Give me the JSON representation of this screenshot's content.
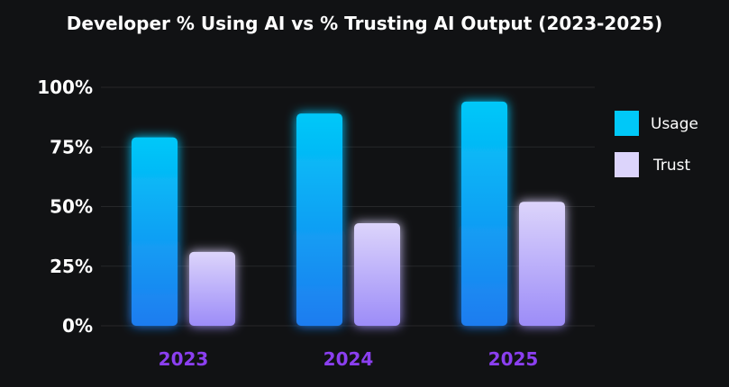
{
  "chart_data": {
    "type": "bar",
    "title": "Developer % Using AI vs % Trusting AI Output (2023-2025)",
    "categories": [
      "2023",
      "2024",
      "2025"
    ],
    "series": [
      {
        "name": "Usage",
        "values": [
          79,
          89,
          94
        ],
        "color": "#00c8f8",
        "color_bottom": "#1f7cf0"
      },
      {
        "name": "Trust",
        "values": [
          31,
          43,
          52
        ],
        "color": "#dcd4fb",
        "color_bottom": "#9c8cf8"
      }
    ],
    "ylim": [
      0,
      100
    ],
    "yticks": [
      "0%",
      "25%",
      "50%",
      "75%",
      "100%"
    ],
    "xlabel": "",
    "ylabel": "",
    "grid": true,
    "legend": "right",
    "category_label_color": "#8b3ff0"
  }
}
